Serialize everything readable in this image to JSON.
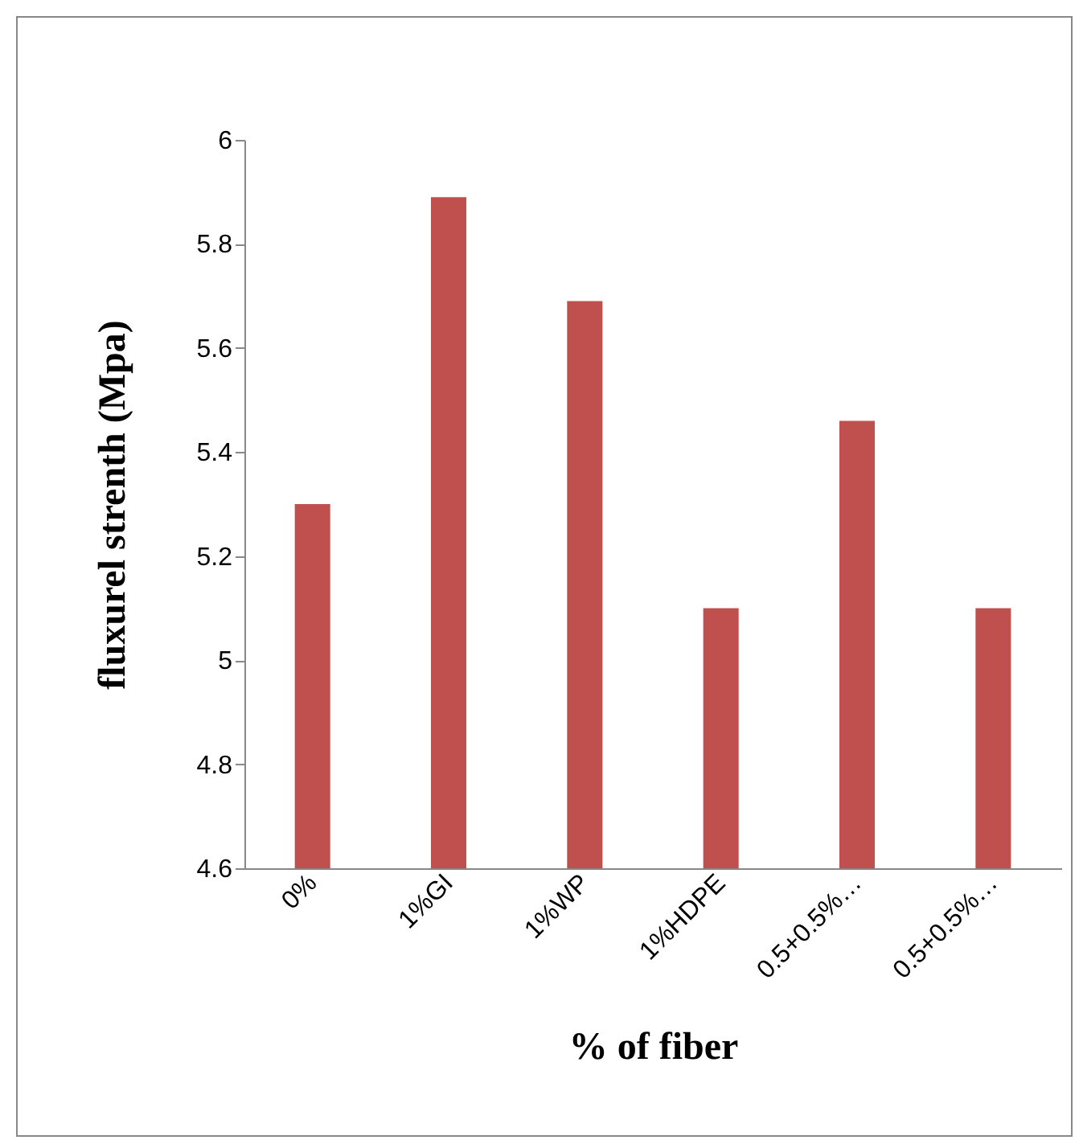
{
  "chart_data": {
    "type": "bar",
    "xlabel": "% of fiber",
    "ylabel": "fluxurel strenth (Mpa)",
    "categories": [
      "0%",
      "1%GI",
      "1%WP",
      "1%HDPE",
      "0.5+0.5%…",
      "0.5+0.5%…"
    ],
    "values": [
      5.3,
      5.89,
      5.69,
      5.1,
      5.46,
      5.1
    ],
    "color": "#c0504d",
    "ylim": [
      4.6,
      6
    ],
    "yticks": [
      4.6,
      4.8,
      5,
      5.2,
      5.4,
      5.6,
      5.8,
      6
    ],
    "grid": false
  }
}
